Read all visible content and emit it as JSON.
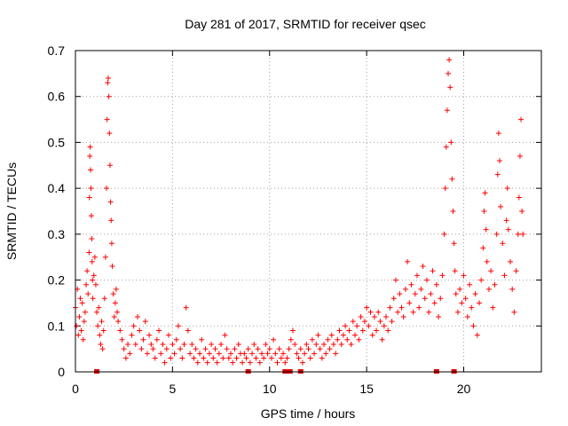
{
  "chart_data": {
    "type": "scatter",
    "title": "Day 281 of 2017, SRMTID for receiver qsec",
    "xlabel": "GPS time / hours",
    "ylabel": "SRMTID / TECUs",
    "xlim": [
      0,
      24
    ],
    "ylim": [
      0,
      0.7
    ],
    "grid": true,
    "x_ticks": [
      0,
      5,
      10,
      15,
      20
    ],
    "x_tick_labels": [
      "0",
      "5",
      "10",
      "15",
      "20"
    ],
    "y_ticks": [
      0,
      0.1,
      0.2,
      0.3,
      0.4,
      0.5,
      0.6,
      0.7
    ],
    "y_tick_labels": [
      "0",
      "0.1",
      "0.2",
      "0.3",
      "0.4",
      "0.5",
      "0.6",
      "0.7"
    ],
    "marker": "+",
    "color": "#ff0000",
    "gap_marker_color": "#dd0000",
    "series": [
      {
        "name": "SRMTID",
        "points": [
          [
            0.0,
            0.14
          ],
          [
            0.05,
            0.1
          ],
          [
            0.1,
            0.18
          ],
          [
            0.15,
            0.08
          ],
          [
            0.2,
            0.12
          ],
          [
            0.25,
            0.16
          ],
          [
            0.3,
            0.09
          ],
          [
            0.35,
            0.15
          ],
          [
            0.4,
            0.07
          ],
          [
            0.45,
            0.11
          ],
          [
            0.5,
            0.13
          ],
          [
            0.55,
            0.19
          ],
          [
            0.6,
            0.22
          ],
          [
            0.65,
            0.17
          ],
          [
            0.7,
            0.26
          ],
          [
            0.72,
            0.38
          ],
          [
            0.74,
            0.47
          ],
          [
            0.76,
            0.49
          ],
          [
            0.78,
            0.44
          ],
          [
            0.8,
            0.4
          ],
          [
            0.82,
            0.34
          ],
          [
            0.84,
            0.29
          ],
          [
            0.86,
            0.24
          ],
          [
            0.88,
            0.2
          ],
          [
            0.9,
            0.16
          ],
          [
            0.95,
            0.21
          ],
          [
            1.0,
            0.25
          ],
          [
            1.05,
            0.19
          ],
          [
            1.1,
            0.13
          ],
          [
            1.15,
            0.1
          ],
          [
            1.2,
            0.14
          ],
          [
            1.25,
            0.08
          ],
          [
            1.3,
            0.06
          ],
          [
            1.35,
            0.11
          ],
          [
            1.4,
            0.05
          ],
          [
            1.45,
            0.09
          ],
          [
            1.5,
            0.16
          ],
          [
            1.55,
            0.25
          ],
          [
            1.6,
            0.4
          ],
          [
            1.63,
            0.55
          ],
          [
            1.66,
            0.63
          ],
          [
            1.69,
            0.64
          ],
          [
            1.72,
            0.6
          ],
          [
            1.75,
            0.52
          ],
          [
            1.78,
            0.45
          ],
          [
            1.81,
            0.37
          ],
          [
            1.84,
            0.33
          ],
          [
            1.87,
            0.28
          ],
          [
            1.9,
            0.23
          ],
          [
            1.95,
            0.17
          ],
          [
            2.0,
            0.12
          ],
          [
            2.05,
            0.15
          ],
          [
            2.1,
            0.18
          ],
          [
            2.15,
            0.13
          ],
          [
            2.2,
            0.11
          ],
          [
            2.3,
            0.09
          ],
          [
            2.4,
            0.07
          ],
          [
            2.5,
            0.05
          ],
          [
            2.6,
            0.03
          ],
          [
            2.7,
            0.06
          ],
          [
            2.8,
            0.04
          ],
          [
            2.9,
            0.08
          ],
          [
            3.0,
            0.1
          ],
          [
            3.1,
            0.06
          ],
          [
            3.2,
            0.12
          ],
          [
            3.3,
            0.09
          ],
          [
            3.4,
            0.05
          ],
          [
            3.5,
            0.07
          ],
          [
            3.6,
            0.11
          ],
          [
            3.7,
            0.04
          ],
          [
            3.8,
            0.08
          ],
          [
            3.9,
            0.06
          ],
          [
            4.0,
            0.05
          ],
          [
            4.1,
            0.03
          ],
          [
            4.2,
            0.07
          ],
          [
            4.3,
            0.09
          ],
          [
            4.4,
            0.04
          ],
          [
            4.5,
            0.06
          ],
          [
            4.6,
            0.02
          ],
          [
            4.7,
            0.05
          ],
          [
            4.8,
            0.08
          ],
          [
            4.9,
            0.03
          ],
          [
            5.0,
            0.06
          ],
          [
            5.1,
            0.04
          ],
          [
            5.2,
            0.07
          ],
          [
            5.3,
            0.1
          ],
          [
            5.4,
            0.05
          ],
          [
            5.5,
            0.03
          ],
          [
            5.6,
            0.06
          ],
          [
            5.7,
            0.14
          ],
          [
            5.8,
            0.09
          ],
          [
            5.9,
            0.04
          ],
          [
            6.0,
            0.06
          ],
          [
            6.1,
            0.03
          ],
          [
            6.2,
            0.05
          ],
          [
            6.3,
            0.02
          ],
          [
            6.4,
            0.04
          ],
          [
            6.5,
            0.07
          ],
          [
            6.6,
            0.03
          ],
          [
            6.7,
            0.05
          ],
          [
            6.8,
            0.02
          ],
          [
            6.9,
            0.04
          ],
          [
            7.0,
            0.06
          ],
          [
            7.1,
            0.03
          ],
          [
            7.2,
            0.05
          ],
          [
            7.3,
            0.02
          ],
          [
            7.4,
            0.04
          ],
          [
            7.5,
            0.06
          ],
          [
            7.6,
            0.03
          ],
          [
            7.7,
            0.08
          ],
          [
            7.8,
            0.05
          ],
          [
            7.9,
            0.03
          ],
          [
            8.0,
            0.04
          ],
          [
            8.1,
            0.02
          ],
          [
            8.2,
            0.05
          ],
          [
            8.3,
            0.03
          ],
          [
            8.4,
            0.06
          ],
          [
            8.5,
            0.04
          ],
          [
            8.6,
            0.02
          ],
          [
            8.7,
            0.04
          ],
          [
            8.8,
            0.03
          ],
          [
            8.9,
            0.05
          ],
          [
            9.0,
            0.02
          ],
          [
            9.1,
            0.04
          ],
          [
            9.2,
            0.06
          ],
          [
            9.3,
            0.03
          ],
          [
            9.4,
            0.05
          ],
          [
            9.5,
            0.02
          ],
          [
            9.6,
            0.04
          ],
          [
            9.7,
            0.03
          ],
          [
            9.8,
            0.06
          ],
          [
            9.9,
            0.04
          ],
          [
            10.0,
            0.05
          ],
          [
            10.1,
            0.03
          ],
          [
            10.2,
            0.07
          ],
          [
            10.3,
            0.04
          ],
          [
            10.4,
            0.02
          ],
          [
            10.5,
            0.05
          ],
          [
            10.6,
            0.03
          ],
          [
            10.7,
            0.04
          ],
          [
            10.8,
            0.02
          ],
          [
            10.9,
            0.03
          ],
          [
            11.0,
            0.05
          ],
          [
            11.1,
            0.07
          ],
          [
            11.2,
            0.09
          ],
          [
            11.3,
            0.06
          ],
          [
            11.4,
            0.04
          ],
          [
            11.5,
            0.03
          ],
          [
            11.6,
            0.05
          ],
          [
            11.7,
            0.02
          ],
          [
            11.8,
            0.04
          ],
          [
            11.9,
            0.06
          ],
          [
            12.0,
            0.05
          ],
          [
            12.1,
            0.03
          ],
          [
            12.2,
            0.07
          ],
          [
            12.3,
            0.04
          ],
          [
            12.4,
            0.06
          ],
          [
            12.5,
            0.08
          ],
          [
            12.6,
            0.05
          ],
          [
            12.7,
            0.03
          ],
          [
            12.8,
            0.06
          ],
          [
            12.9,
            0.04
          ],
          [
            13.0,
            0.07
          ],
          [
            13.1,
            0.05
          ],
          [
            13.2,
            0.08
          ],
          [
            13.3,
            0.06
          ],
          [
            13.4,
            0.04
          ],
          [
            13.5,
            0.07
          ],
          [
            13.6,
            0.09
          ],
          [
            13.7,
            0.06
          ],
          [
            13.8,
            0.08
          ],
          [
            13.9,
            0.1
          ],
          [
            14.0,
            0.07
          ],
          [
            14.1,
            0.09
          ],
          [
            14.2,
            0.06
          ],
          [
            14.3,
            0.11
          ],
          [
            14.4,
            0.08
          ],
          [
            14.5,
            0.1
          ],
          [
            14.6,
            0.07
          ],
          [
            14.7,
            0.12
          ],
          [
            14.8,
            0.09
          ],
          [
            14.9,
            0.11
          ],
          [
            15.0,
            0.14
          ],
          [
            15.1,
            0.1
          ],
          [
            15.2,
            0.13
          ],
          [
            15.3,
            0.08
          ],
          [
            15.4,
            0.12
          ],
          [
            15.5,
            0.09
          ],
          [
            15.6,
            0.13
          ],
          [
            15.7,
            0.11
          ],
          [
            15.8,
            0.07
          ],
          [
            15.9,
            0.1
          ],
          [
            16.0,
            0.12
          ],
          [
            16.1,
            0.09
          ],
          [
            16.2,
            0.14
          ],
          [
            16.3,
            0.11
          ],
          [
            16.4,
            0.16
          ],
          [
            16.5,
            0.2
          ],
          [
            16.6,
            0.13
          ],
          [
            16.7,
            0.17
          ],
          [
            16.8,
            0.14
          ],
          [
            16.9,
            0.12
          ],
          [
            17.0,
            0.18
          ],
          [
            17.1,
            0.24
          ],
          [
            17.2,
            0.15
          ],
          [
            17.3,
            0.19
          ],
          [
            17.4,
            0.13
          ],
          [
            17.5,
            0.17
          ],
          [
            17.6,
            0.21
          ],
          [
            17.7,
            0.14
          ],
          [
            17.8,
            0.18
          ],
          [
            17.9,
            0.23
          ],
          [
            18.0,
            0.16
          ],
          [
            18.1,
            0.2
          ],
          [
            18.2,
            0.13
          ],
          [
            18.3,
            0.17
          ],
          [
            18.4,
            0.22
          ],
          [
            18.5,
            0.15
          ],
          [
            18.6,
            0.19
          ],
          [
            18.7,
            0.12
          ],
          [
            18.8,
            0.16
          ],
          [
            18.9,
            0.21
          ],
          [
            19.0,
            0.3
          ],
          [
            19.05,
            0.4
          ],
          [
            19.1,
            0.49
          ],
          [
            19.15,
            0.57
          ],
          [
            19.2,
            0.65
          ],
          [
            19.25,
            0.68
          ],
          [
            19.3,
            0.62
          ],
          [
            19.35,
            0.5
          ],
          [
            19.4,
            0.42
          ],
          [
            19.45,
            0.35
          ],
          [
            19.5,
            0.28
          ],
          [
            19.55,
            0.22
          ],
          [
            19.6,
            0.17
          ],
          [
            19.7,
            0.13
          ],
          [
            19.8,
            0.18
          ],
          [
            19.9,
            0.15
          ],
          [
            20.0,
            0.21
          ],
          [
            20.1,
            0.16
          ],
          [
            20.2,
            0.12
          ],
          [
            20.3,
            0.19
          ],
          [
            20.4,
            0.14
          ],
          [
            20.5,
            0.1
          ],
          [
            20.6,
            0.17
          ],
          [
            20.7,
            0.08
          ],
          [
            20.8,
            0.15
          ],
          [
            20.9,
            0.2
          ],
          [
            21.0,
            0.27
          ],
          [
            21.05,
            0.35
          ],
          [
            21.1,
            0.39
          ],
          [
            21.15,
            0.31
          ],
          [
            21.2,
            0.24
          ],
          [
            21.3,
            0.18
          ],
          [
            21.4,
            0.22
          ],
          [
            21.5,
            0.14
          ],
          [
            21.6,
            0.19
          ],
          [
            21.7,
            0.3
          ],
          [
            21.75,
            0.43
          ],
          [
            21.8,
            0.52
          ],
          [
            21.85,
            0.46
          ],
          [
            21.9,
            0.36
          ],
          [
            22.0,
            0.28
          ],
          [
            22.1,
            0.21
          ],
          [
            22.2,
            0.33
          ],
          [
            22.25,
            0.4
          ],
          [
            22.3,
            0.31
          ],
          [
            22.4,
            0.24
          ],
          [
            22.5,
            0.18
          ],
          [
            22.6,
            0.13
          ],
          [
            22.7,
            0.22
          ],
          [
            22.8,
            0.3
          ],
          [
            22.85,
            0.38
          ],
          [
            22.9,
            0.47
          ],
          [
            22.95,
            0.55
          ],
          [
            23.0,
            0.35
          ],
          [
            23.05,
            0.3
          ]
        ]
      }
    ],
    "gap_markers_x": [
      1.1,
      8.9,
      10.8,
      11.05,
      11.6,
      18.6,
      19.5
    ]
  }
}
